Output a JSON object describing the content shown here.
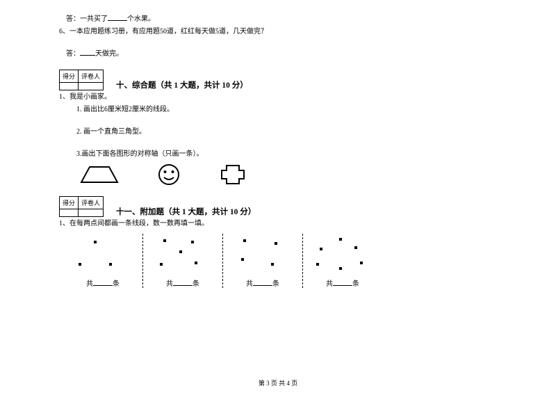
{
  "page": {
    "footer": "第 3 页 共 4 页",
    "text_color": "#000000",
    "bg_color": "#ffffff"
  },
  "q_top": {
    "answer_line": "答：一共买了______个水果。",
    "answer_prefix": "答：一共买了",
    "answer_suffix": "个水果。"
  },
  "q6": {
    "label": "6、",
    "text": "一本应用题练习册，有应用题50道，红红每天做5道，几天做完？",
    "answer_prefix": "答：",
    "answer_suffix": "天做完。"
  },
  "section10": {
    "score_labels": [
      "得分",
      "评卷人"
    ],
    "title": "十、综合题（共 1 大题，共计 10 分）",
    "q1_label": "1、",
    "q1_text": "我是小画家。",
    "sub1_label": "1.",
    "sub1_text": "画出比6厘米短2厘米的线段。",
    "sub2_label": "2.",
    "sub2_text": "画一个直角三角型。",
    "sub3_label": "3.",
    "sub3_text": "画出下面各图形的对称轴（只画一条）。",
    "shapes": {
      "trapezoid": {
        "stroke": "#000000",
        "fill": "none",
        "stroke_width": 2
      },
      "smiley": {
        "stroke": "#000000",
        "fill": "none",
        "stroke_width": 2
      },
      "cross": {
        "stroke": "#000000",
        "fill": "none",
        "stroke_width": 2
      }
    }
  },
  "section11": {
    "score_labels": [
      "得分",
      "评卷人"
    ],
    "title": "十一、附加题（共 1 大题，共计 10 分）",
    "q1_label": "1、",
    "q1_text": "在每两点间都画一条线段，数一数再填一填。",
    "groups": [
      {
        "dots": [
          [
            40,
            10
          ],
          [
            18,
            42
          ],
          [
            62,
            42
          ]
        ]
      },
      {
        "dots": [
          [
            25,
            8
          ],
          [
            65,
            10
          ],
          [
            48,
            24
          ],
          [
            20,
            42
          ],
          [
            70,
            40
          ]
        ]
      },
      {
        "dots": [
          [
            25,
            8
          ],
          [
            70,
            12
          ],
          [
            22,
            35
          ],
          [
            65,
            42
          ]
        ]
      },
      {
        "dots": [
          [
            48,
            6
          ],
          [
            20,
            20
          ],
          [
            70,
            18
          ],
          [
            15,
            42
          ],
          [
            48,
            48
          ],
          [
            78,
            40
          ]
        ]
      }
    ],
    "label_prefix": "共",
    "label_suffix": "条"
  }
}
